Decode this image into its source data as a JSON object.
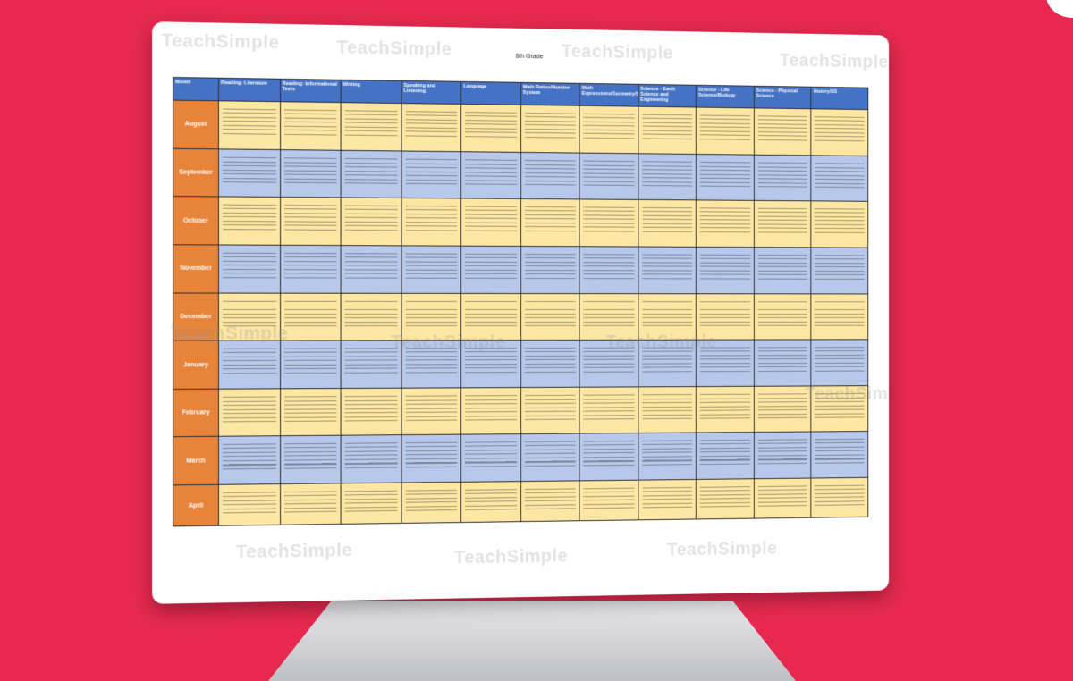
{
  "header": {
    "title": "6th Grade"
  },
  "table": {
    "columns": [
      "Month",
      "Reading: Literature",
      "Reading: Informational Texts",
      "Writing",
      "Speaking and Listening",
      "Language",
      "Math Ratios/Number System",
      "Math Expressions/Geometry/Statistics",
      "Science - Earth Science and Engineering",
      "Science - Life Science/Biology",
      "Science - Physical Science",
      "History/SS"
    ],
    "months": [
      "August",
      "September",
      "October",
      "November",
      "December",
      "January",
      "February",
      "March",
      "April"
    ]
  },
  "watermark": "TeachSimple"
}
